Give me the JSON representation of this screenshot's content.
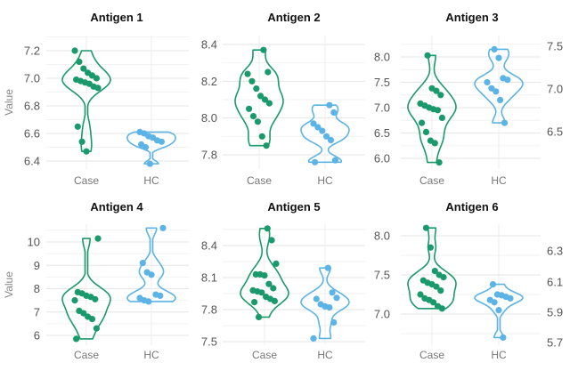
{
  "chart_data": {
    "type": "violin",
    "ylabel": "Value",
    "categories": [
      "Case",
      "HC"
    ],
    "colors": {
      "Case": "#1a9a6c",
      "HC": "#5bb4e5"
    },
    "grid": true,
    "panels": [
      {
        "title": "Antigen 1",
        "ylim": [
          6.35,
          7.25
        ],
        "ticks": [
          6.4,
          6.6,
          6.8,
          7.0,
          7.2
        ],
        "tick_labels": [
          "6.4",
          "6.6",
          "6.8",
          "7.0",
          "7.2"
        ],
        "show_ylabel": true,
        "Case": [
          7.2,
          7.12,
          7.07,
          7.04,
          7.02,
          7.0,
          6.99,
          6.98,
          6.97,
          6.96,
          6.94,
          6.93,
          6.65,
          6.54,
          6.47
        ],
        "HC": [
          6.61,
          6.6,
          6.58,
          6.57,
          6.55,
          6.54,
          6.52,
          6.5,
          6.38
        ]
      },
      {
        "title": "Antigen 2",
        "ylim": [
          7.75,
          8.4
        ],
        "ticks": [
          7.8,
          8.0,
          8.2,
          8.4
        ],
        "tick_labels": [
          "7.8",
          "8.0",
          "8.2",
          "8.4"
        ],
        "show_ylabel": false,
        "Case": [
          8.37,
          8.25,
          8.24,
          8.2,
          8.16,
          8.12,
          8.1,
          8.08,
          8.05,
          8.01,
          7.98,
          7.9,
          7.85
        ],
        "HC": [
          8.07,
          8.03,
          7.97,
          7.95,
          7.93,
          7.9,
          7.88,
          7.77,
          7.76
        ]
      },
      {
        "title": "Antigen 3",
        "ylim": [
          5.9,
          8.15
        ],
        "ticks": [
          6.0,
          6.5,
          7.0,
          7.5,
          8.0
        ],
        "tick_labels": [
          "6.0",
          "6.5",
          "7.0",
          "7.5",
          "8.0"
        ],
        "show_ylabel": false,
        "right_tick_labels": [
          "7.5",
          "7.0",
          "6.5"
        ],
        "Case": [
          8.03,
          7.38,
          7.33,
          7.25,
          7.08,
          7.04,
          7.0,
          6.97,
          6.95,
          6.8,
          6.7,
          6.52,
          6.35,
          6.3,
          5.92
        ],
        "HC": [
          8.15,
          7.98,
          7.58,
          7.55,
          7.5,
          7.38,
          7.32,
          7.15,
          6.7
        ]
      },
      {
        "title": "Antigen 4",
        "ylim": [
          5.8,
          10.7
        ],
        "ticks": [
          6,
          7,
          8,
          9,
          10
        ],
        "tick_labels": [
          "6",
          "7",
          "8",
          "9",
          "10"
        ],
        "show_ylabel": true,
        "Case": [
          10.15,
          7.85,
          7.8,
          7.7,
          7.65,
          7.55,
          7.5,
          7.05,
          6.95,
          6.8,
          6.7,
          6.3,
          5.85
        ],
        "HC": [
          10.6,
          9.1,
          8.7,
          8.6,
          7.75,
          7.7,
          7.6,
          7.5,
          7.45
        ]
      },
      {
        "title": "Antigen 5",
        "ylim": [
          7.5,
          8.6
        ],
        "ticks": [
          7.5,
          7.8,
          8.1,
          8.4
        ],
        "tick_labels": [
          "7.5",
          "7.8",
          "8.1",
          "8.4"
        ],
        "show_ylabel": false,
        "Case": [
          8.56,
          8.45,
          8.23,
          8.13,
          8.13,
          8.12,
          8.04,
          8.0,
          7.98,
          7.97,
          7.96,
          7.92,
          7.9,
          7.88,
          7.87,
          7.73
        ],
        "HC": [
          8.19,
          7.96,
          7.91,
          7.9,
          7.85,
          7.83,
          7.82,
          7.68,
          7.53
        ]
      },
      {
        "title": "Antigen 6",
        "ylim": [
          6.7,
          8.15
        ],
        "ticks": [
          7.0,
          7.5,
          8.0
        ],
        "tick_labels": [
          "7.0",
          "7.5",
          "8.0"
        ],
        "show_ylabel": false,
        "right_tick_labels": [
          "6.3",
          "6.1",
          "5.9",
          "5.7"
        ],
        "Case": [
          8.1,
          7.85,
          7.55,
          7.5,
          7.47,
          7.43,
          7.4,
          7.38,
          7.35,
          7.3,
          7.25,
          7.2,
          7.18,
          7.15,
          7.1,
          7.07
        ],
        "HC": [
          7.38,
          7.25,
          7.24,
          7.22,
          7.2,
          7.18,
          7.15,
          7.05,
          6.7
        ]
      }
    ]
  }
}
